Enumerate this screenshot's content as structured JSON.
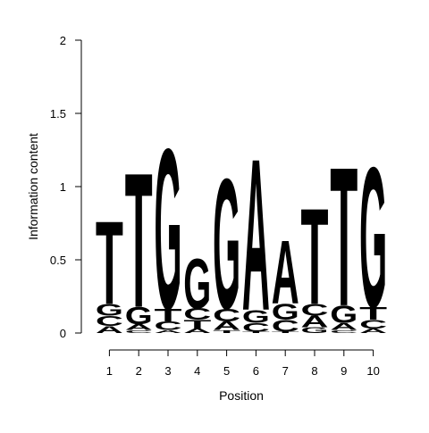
{
  "chart_data": {
    "type": "sequence-logo",
    "xlabel": "Position",
    "ylabel": "Information content",
    "ylim": [
      0,
      2
    ],
    "y_ticks": [
      "0",
      "0.5",
      "1",
      "1.5",
      "2"
    ],
    "x_ticks": [
      "1",
      "2",
      "3",
      "4",
      "5",
      "6",
      "7",
      "8",
      "9",
      "10"
    ],
    "grid": false,
    "colors": {
      "A": "#00ee00",
      "C": "#0000ee",
      "G": "#ffa500",
      "T": "#ff0000"
    },
    "positions": [
      {
        "position": 1,
        "stack": [
          [
            "A",
            0.05
          ],
          [
            "C",
            0.07
          ],
          [
            "G",
            0.08
          ],
          [
            "T",
            0.58
          ]
        ]
      },
      {
        "position": 2,
        "stack": [
          [
            "C",
            0.02
          ],
          [
            "A",
            0.04
          ],
          [
            "G",
            0.12
          ],
          [
            "T",
            0.94
          ]
        ]
      },
      {
        "position": 3,
        "stack": [
          [
            "A",
            0.02
          ],
          [
            "C",
            0.06
          ],
          [
            "T",
            0.09
          ],
          [
            "G",
            1.12
          ]
        ]
      },
      {
        "position": 4,
        "stack": [
          [
            "A",
            0.03
          ],
          [
            "T",
            0.06
          ],
          [
            "C",
            0.08
          ],
          [
            "G",
            0.35
          ]
        ]
      },
      {
        "position": 5,
        "stack": [
          [
            "T",
            0.02
          ],
          [
            "A",
            0.06
          ],
          [
            "C",
            0.09
          ],
          [
            "G",
            0.91
          ]
        ]
      },
      {
        "position": 6,
        "stack": [
          [
            "T",
            0.01
          ],
          [
            "C",
            0.06
          ],
          [
            "G",
            0.09
          ],
          [
            "A",
            1.06
          ]
        ]
      },
      {
        "position": 7,
        "stack": [
          [
            "T",
            0.01
          ],
          [
            "C",
            0.08
          ],
          [
            "G",
            0.11
          ],
          [
            "A",
            0.44
          ]
        ]
      },
      {
        "position": 8,
        "stack": [
          [
            "G",
            0.04
          ],
          [
            "A",
            0.08
          ],
          [
            "C",
            0.08
          ],
          [
            "T",
            0.67
          ]
        ]
      },
      {
        "position": 9,
        "stack": [
          [
            "C",
            0.02
          ],
          [
            "A",
            0.05
          ],
          [
            "G",
            0.12
          ],
          [
            "T",
            0.97
          ]
        ]
      },
      {
        "position": 10,
        "stack": [
          [
            "A",
            0.03
          ],
          [
            "C",
            0.06
          ],
          [
            "T",
            0.09
          ],
          [
            "G",
            0.98
          ]
        ]
      }
    ]
  }
}
